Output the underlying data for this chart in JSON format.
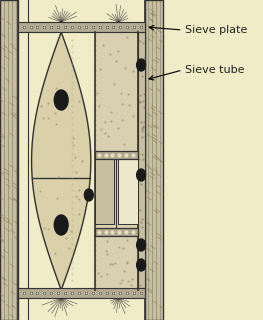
{
  "bg_color": "#f0ecc8",
  "fig_width": 2.63,
  "fig_height": 3.2,
  "dpi": 100,
  "label_sieve_plate": "Sieve plate",
  "label_sieve_tube": "Sieve tube",
  "label_fontsize": 8,
  "arrow_color": "#111111",
  "line_color": "#555555",
  "dark_line": "#333333",
  "cell_gray": "#c8bfa0",
  "cell_light": "#e0d8b8",
  "nucleus_color": "#1a1a1a",
  "wall_color": "#a09070",
  "bg_inner": "#f0ecc8",
  "sieve_plate_gray": "#b0a890",
  "companion_fill": "#ccc0a0",
  "tube_fill": "#d8d0b0",
  "note_color": "#222222"
}
